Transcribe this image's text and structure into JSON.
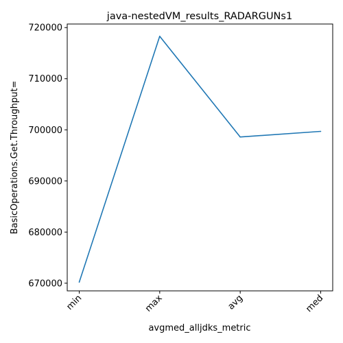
{
  "chart_data": {
    "type": "line",
    "title": "java-nestedVM_results_RADARGUNs1",
    "xlabel": "avgmed_alljdks_metric",
    "ylabel": "BasicOperations.Get.Throughput=",
    "categories": [
      "min",
      "max",
      "avg",
      "med"
    ],
    "series": [
      {
        "values": [
          670200,
          718300,
          698600,
          699700
        ]
      }
    ],
    "ylim": [
      668500,
      720700
    ],
    "yticks": [
      {
        "value": 670000,
        "label": "670000"
      },
      {
        "value": 680000,
        "label": "680000"
      },
      {
        "value": 690000,
        "label": "690000"
      },
      {
        "value": 700000,
        "label": "700000"
      },
      {
        "value": 710000,
        "label": "710000"
      },
      {
        "value": 720000,
        "label": "720000"
      }
    ],
    "grid": false,
    "line_color": "#1f77b4"
  }
}
